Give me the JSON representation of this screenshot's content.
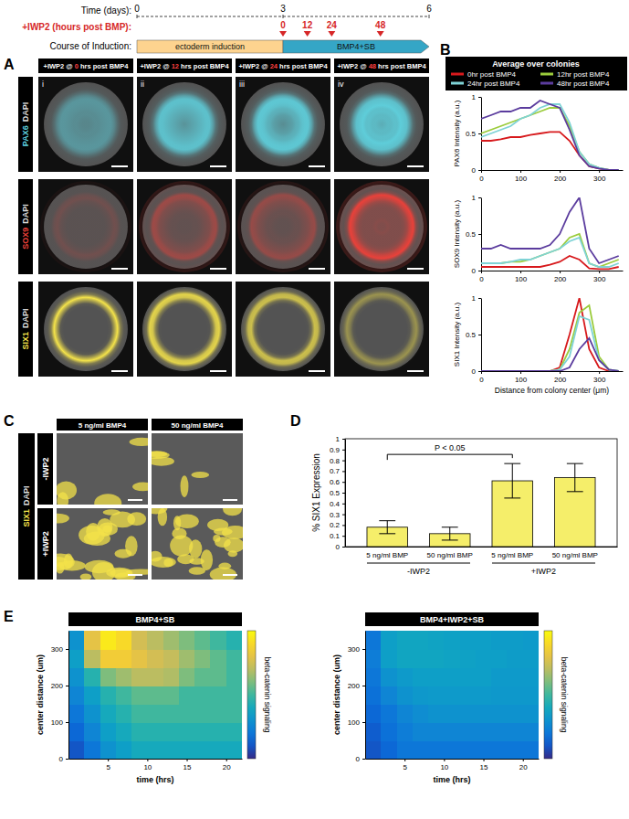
{
  "chart_data": [
    {
      "type": "line",
      "ylabel": "PAX6 Intensity (a.u.)",
      "legend": "top",
      "x": [
        0,
        25,
        50,
        75,
        100,
        125,
        150,
        175,
        200,
        225,
        250,
        275,
        300,
        325,
        350
      ],
      "xlim": [
        0,
        360
      ],
      "xticks": [
        0,
        100,
        200,
        300
      ],
      "ylim": [
        0,
        1
      ],
      "yticks": [
        0,
        0.5,
        1
      ],
      "series": [
        {
          "name": "0hr post BMP4",
          "color": "#d7191c",
          "values": [
            0.4,
            0.4,
            0.42,
            0.45,
            0.45,
            0.48,
            0.5,
            0.52,
            0.52,
            0.4,
            0.2,
            0.05,
            0.02,
            0,
            0
          ]
        },
        {
          "name": "12hr post BMP4",
          "color": "#9bcc3c",
          "values": [
            0.5,
            0.55,
            0.6,
            0.65,
            0.7,
            0.75,
            0.8,
            0.85,
            0.85,
            0.6,
            0.25,
            0.08,
            0.03,
            0,
            0
          ]
        },
        {
          "name": "24hr post BMP4",
          "color": "#7fd3d6",
          "values": [
            0.45,
            0.5,
            0.55,
            0.6,
            0.7,
            0.75,
            0.85,
            0.9,
            0.9,
            0.65,
            0.25,
            0.08,
            0.03,
            0,
            0
          ]
        },
        {
          "name": "48hr post BMP4",
          "color": "#5b3c9e",
          "values": [
            0.7,
            0.75,
            0.8,
            0.8,
            0.85,
            0.85,
            0.95,
            0.9,
            0.85,
            0.55,
            0.2,
            0.05,
            0.02,
            0,
            0
          ]
        }
      ]
    },
    {
      "type": "line",
      "ylabel": "SOX9 Intensity (a.u.)",
      "x": [
        0,
        25,
        50,
        75,
        100,
        125,
        150,
        175,
        200,
        225,
        250,
        275,
        300,
        325,
        350
      ],
      "xlim": [
        0,
        360
      ],
      "xticks": [
        0,
        100,
        200,
        300
      ],
      "ylim": [
        0,
        1
      ],
      "yticks": [
        0,
        0.5,
        1
      ],
      "series": [
        {
          "color": "#d7191c",
          "values": [
            0.05,
            0.05,
            0.05,
            0.05,
            0.05,
            0.05,
            0.05,
            0.08,
            0.12,
            0.2,
            0.15,
            0.03,
            0.02,
            0.02,
            0.05
          ]
        },
        {
          "color": "#9bcc3c",
          "values": [
            0.1,
            0.1,
            0.1,
            0.12,
            0.12,
            0.15,
            0.2,
            0.25,
            0.3,
            0.45,
            0.5,
            0.1,
            0.05,
            0.1,
            0.15
          ]
        },
        {
          "color": "#7fd3d6",
          "values": [
            0.1,
            0.1,
            0.1,
            0.12,
            0.15,
            0.15,
            0.2,
            0.25,
            0.3,
            0.4,
            0.45,
            0.1,
            0.05,
            0.05,
            0.1
          ]
        },
        {
          "color": "#5b3c9e",
          "values": [
            0.3,
            0.3,
            0.35,
            0.3,
            0.3,
            0.3,
            0.3,
            0.35,
            0.5,
            0.8,
            1.0,
            0.3,
            0.1,
            0.15,
            0.2
          ]
        }
      ]
    },
    {
      "type": "line",
      "ylabel": "SIX1 Intensity (a.u.)",
      "xlabel": "Distance from colony center (μm)",
      "x": [
        0,
        25,
        50,
        75,
        100,
        125,
        150,
        175,
        200,
        225,
        250,
        275,
        300,
        325,
        350
      ],
      "xlim": [
        0,
        360
      ],
      "xticks": [
        0,
        100,
        200,
        300
      ],
      "ylim": [
        0,
        1
      ],
      "yticks": [
        0,
        0.5,
        1
      ],
      "series": [
        {
          "color": "#d7191c",
          "values": [
            0,
            0,
            0,
            0,
            0,
            0,
            0,
            0,
            0.05,
            0.5,
            1.0,
            0.3,
            0.05,
            0,
            0
          ]
        },
        {
          "color": "#9bcc3c",
          "values": [
            0,
            0,
            0,
            0,
            0,
            0,
            0,
            0,
            0.02,
            0.3,
            0.8,
            0.9,
            0.2,
            0.02,
            0
          ]
        },
        {
          "color": "#7fd3d6",
          "values": [
            0,
            0,
            0,
            0,
            0,
            0,
            0,
            0,
            0.02,
            0.2,
            0.75,
            0.7,
            0.15,
            0.02,
            0
          ]
        },
        {
          "color": "#5b3c9e",
          "values": [
            0,
            0,
            0,
            0,
            0,
            0,
            0,
            0,
            0,
            0.05,
            0.3,
            0.45,
            0.15,
            0.02,
            0
          ]
        }
      ]
    },
    {
      "type": "bar",
      "ylabel": "% SIX1 Expression",
      "categories": [
        "5 ng/ml BMP",
        "50 ng/ml BMP",
        "5 ng/ml BMP",
        "50 ng/ml BMP"
      ],
      "groups": [
        "-IWP2",
        "+IWP2"
      ],
      "values": [
        0.18,
        0.12,
        0.61,
        0.64
      ],
      "errors": [
        0.06,
        0.06,
        0.16,
        0.13
      ],
      "color": "#f5ee6a",
      "ylim": [
        0,
        1
      ],
      "yticks": [
        0,
        0.1,
        0.2,
        0.3,
        0.4,
        0.5,
        0.6,
        0.7,
        0.8,
        0.9,
        1
      ],
      "annotations": [
        {
          "text": "P < 0.05"
        }
      ]
    },
    {
      "type": "heatmap",
      "title": "BMP4+SB",
      "xlabel": "time (hrs)",
      "ylabel": "center distance (um)",
      "xlim": [
        0,
        22
      ],
      "xticks": [
        5,
        10,
        15,
        20
      ],
      "ylim": [
        0,
        350
      ],
      "yticks": [
        0,
        100,
        200,
        300
      ],
      "x_bins": [
        0,
        2,
        4,
        6,
        8,
        10,
        12,
        14,
        16,
        18,
        20,
        22
      ],
      "y_bins": [
        0,
        50,
        100,
        150,
        200,
        250,
        300,
        350
      ],
      "values": [
        [
          0.1,
          0.2,
          0.3,
          0.35,
          0.4,
          0.4,
          0.4,
          0.4,
          0.4,
          0.4,
          0.4
        ],
        [
          0.15,
          0.25,
          0.35,
          0.4,
          0.45,
          0.45,
          0.45,
          0.45,
          0.45,
          0.45,
          0.45
        ],
        [
          0.2,
          0.3,
          0.4,
          0.45,
          0.5,
          0.5,
          0.5,
          0.5,
          0.5,
          0.5,
          0.5
        ],
        [
          0.25,
          0.35,
          0.45,
          0.5,
          0.55,
          0.55,
          0.55,
          0.5,
          0.5,
          0.5,
          0.5
        ],
        [
          0.3,
          0.45,
          0.6,
          0.65,
          0.7,
          0.7,
          0.68,
          0.6,
          0.55,
          0.55,
          0.5
        ],
        [
          0.35,
          0.7,
          0.85,
          0.85,
          0.8,
          0.75,
          0.72,
          0.65,
          0.6,
          0.55,
          0.5
        ],
        [
          0.3,
          0.8,
          0.95,
          0.9,
          0.75,
          0.7,
          0.65,
          0.6,
          0.55,
          0.5,
          0.45
        ]
      ],
      "colorbar": {
        "label": "beta-catenin signaling",
        "range": [
          0,
          1
        ]
      }
    },
    {
      "type": "heatmap",
      "title": "BMP4+IWP2+SB",
      "xlabel": "time (hrs)",
      "ylabel": "center distance (um)",
      "xlim": [
        0,
        22
      ],
      "xticks": [
        5,
        10,
        15,
        20
      ],
      "ylim": [
        0,
        350
      ],
      "yticks": [
        0,
        100,
        200,
        300
      ],
      "x_bins": [
        0,
        2,
        4,
        6,
        8,
        10,
        12,
        14,
        16,
        18,
        20,
        22
      ],
      "y_bins": [
        0,
        50,
        100,
        150,
        200,
        250,
        300,
        350
      ],
      "values": [
        [
          0.1,
          0.15,
          0.2,
          0.2,
          0.2,
          0.2,
          0.2,
          0.2,
          0.2,
          0.2,
          0.2
        ],
        [
          0.12,
          0.18,
          0.22,
          0.25,
          0.25,
          0.25,
          0.25,
          0.25,
          0.25,
          0.25,
          0.25
        ],
        [
          0.15,
          0.2,
          0.25,
          0.28,
          0.3,
          0.3,
          0.3,
          0.3,
          0.3,
          0.3,
          0.3
        ],
        [
          0.18,
          0.25,
          0.3,
          0.32,
          0.33,
          0.33,
          0.33,
          0.33,
          0.32,
          0.32,
          0.32
        ],
        [
          0.2,
          0.3,
          0.33,
          0.35,
          0.35,
          0.35,
          0.35,
          0.35,
          0.33,
          0.33,
          0.33
        ],
        [
          0.22,
          0.35,
          0.38,
          0.38,
          0.38,
          0.37,
          0.36,
          0.35,
          0.35,
          0.34,
          0.34
        ],
        [
          0.2,
          0.35,
          0.38,
          0.38,
          0.37,
          0.36,
          0.35,
          0.35,
          0.34,
          0.34,
          0.33
        ]
      ],
      "colorbar": {
        "label": "beta-catenin signaling",
        "range": [
          0,
          1
        ]
      }
    }
  ],
  "figure": {
    "panels": [
      "A",
      "B",
      "C",
      "D",
      "E"
    ],
    "timeline": {
      "label": "Time (days):",
      "range": [
        0,
        6
      ],
      "ticks": [
        0,
        3,
        6
      ],
      "iwp2_label": "+IWP2 (hours post BMP):",
      "iwp2_hours": [
        0,
        12,
        24,
        48
      ],
      "course_label": "Course of Induction:",
      "phases": [
        {
          "label": "ectoderm induction",
          "start": 0,
          "end": 3,
          "color": "#fdd38f"
        },
        {
          "label": "BMP4+SB",
          "start": 3,
          "end": 6,
          "color": "#35a6c6"
        }
      ]
    },
    "panel_a": {
      "columns": [
        {
          "prefix": "+IWP2 @ ",
          "hours": 0,
          "suffix": " hrs post BMP4",
          "numeral": "i"
        },
        {
          "prefix": "+IWP2 @ ",
          "hours": 12,
          "suffix": " hrs post BMP4",
          "numeral": "ii"
        },
        {
          "prefix": "+IWP2 @ ",
          "hours": 24,
          "suffix": " hrs post BMP4",
          "numeral": "iii"
        },
        {
          "prefix": "+IWP2 @ ",
          "hours": 48,
          "suffix": " hrs post BMP4",
          "numeral": "iv"
        }
      ],
      "rows": [
        {
          "marker": "PAX6",
          "counter": "DAPI",
          "color": "#5fd3e0"
        },
        {
          "marker": "SOX9",
          "counter": "DAPI",
          "color": "#e8413a"
        },
        {
          "marker": "SIX1",
          "counter": "DAPI",
          "color": "#f3e24a"
        }
      ]
    },
    "panel_b_legend_title": "Average over colonies",
    "panel_c": {
      "columns": [
        "5 ng/ml BMP4",
        "50 ng/ml BMP4"
      ],
      "rows": [
        "-IWP2",
        "+IWP2"
      ],
      "marker": "SIX1",
      "counter": "DAPI",
      "color": "#f3e24a"
    }
  }
}
